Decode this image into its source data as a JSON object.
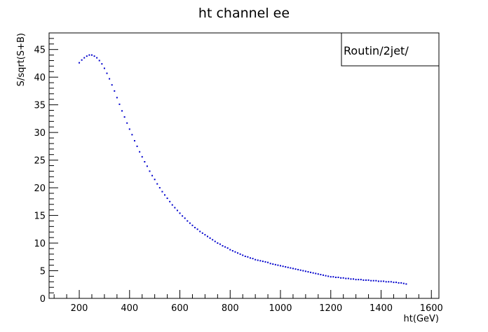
{
  "chart_data": {
    "type": "scatter",
    "title": "ht channel  ee",
    "xlabel": "ht(GeV)",
    "ylabel": "S/sqrt(S+B)",
    "xlim": [
      80,
      1630
    ],
    "ylim": [
      0,
      48
    ],
    "xticks": [
      200,
      400,
      600,
      800,
      1000,
      1200,
      1400,
      1600
    ],
    "yticks": [
      0,
      5,
      10,
      15,
      20,
      25,
      30,
      35,
      40,
      45
    ],
    "marker_color": "#0000cc",
    "legend": {
      "text": "Routin/2jet/",
      "placement": "top-right"
    },
    "x": [
      200,
      210,
      220,
      230,
      240,
      250,
      260,
      270,
      280,
      290,
      300,
      310,
      320,
      330,
      340,
      350,
      360,
      370,
      380,
      390,
      400,
      410,
      420,
      430,
      440,
      450,
      460,
      470,
      480,
      490,
      500,
      510,
      520,
      530,
      540,
      550,
      560,
      570,
      580,
      590,
      600,
      610,
      620,
      630,
      640,
      650,
      660,
      670,
      680,
      690,
      700,
      710,
      720,
      730,
      740,
      750,
      760,
      770,
      780,
      790,
      800,
      810,
      820,
      830,
      840,
      850,
      860,
      870,
      880,
      890,
      900,
      910,
      920,
      930,
      940,
      950,
      960,
      970,
      980,
      990,
      1000,
      1010,
      1020,
      1030,
      1040,
      1050,
      1060,
      1070,
      1080,
      1090,
      1100,
      1110,
      1120,
      1130,
      1140,
      1150,
      1160,
      1170,
      1180,
      1190,
      1200,
      1210,
      1220,
      1230,
      1240,
      1250,
      1260,
      1270,
      1280,
      1290,
      1300,
      1310,
      1320,
      1330,
      1340,
      1350,
      1360,
      1370,
      1380,
      1390,
      1400,
      1410,
      1420,
      1430,
      1440,
      1450,
      1460,
      1470,
      1480,
      1490,
      1500
    ],
    "y": [
      42.6,
      43.1,
      43.5,
      43.8,
      44.0,
      44.0,
      43.8,
      43.5,
      43.0,
      42.4,
      41.6,
      40.7,
      39.7,
      38.6,
      37.5,
      36.3,
      35.1,
      33.9,
      32.8,
      31.7,
      30.6,
      29.6,
      28.5,
      27.5,
      26.5,
      25.6,
      24.7,
      23.9,
      23.0,
      22.2,
      21.5,
      20.7,
      20.0,
      19.3,
      18.7,
      18.1,
      17.5,
      16.9,
      16.4,
      15.9,
      15.4,
      14.9,
      14.5,
      14.0,
      13.6,
      13.2,
      12.8,
      12.5,
      12.1,
      11.8,
      11.5,
      11.2,
      10.9,
      10.6,
      10.3,
      10.0,
      9.8,
      9.5,
      9.3,
      9.1,
      8.8,
      8.6,
      8.4,
      8.2,
      8.0,
      7.8,
      7.6,
      7.5,
      7.3,
      7.2,
      7.0,
      6.9,
      6.8,
      6.7,
      6.6,
      6.5,
      6.3,
      6.2,
      6.1,
      6.0,
      5.9,
      5.8,
      5.7,
      5.6,
      5.5,
      5.4,
      5.3,
      5.2,
      5.1,
      5.0,
      4.9,
      4.8,
      4.7,
      4.6,
      4.5,
      4.4,
      4.3,
      4.2,
      4.1,
      4.0,
      3.9,
      3.9,
      3.8,
      3.8,
      3.7,
      3.7,
      3.6,
      3.6,
      3.5,
      3.5,
      3.4,
      3.4,
      3.4,
      3.3,
      3.3,
      3.3,
      3.2,
      3.2,
      3.2,
      3.1,
      3.1,
      3.1,
      3.0,
      3.0,
      3.0,
      2.9,
      2.9,
      2.8,
      2.8,
      2.7,
      2.6
    ]
  }
}
